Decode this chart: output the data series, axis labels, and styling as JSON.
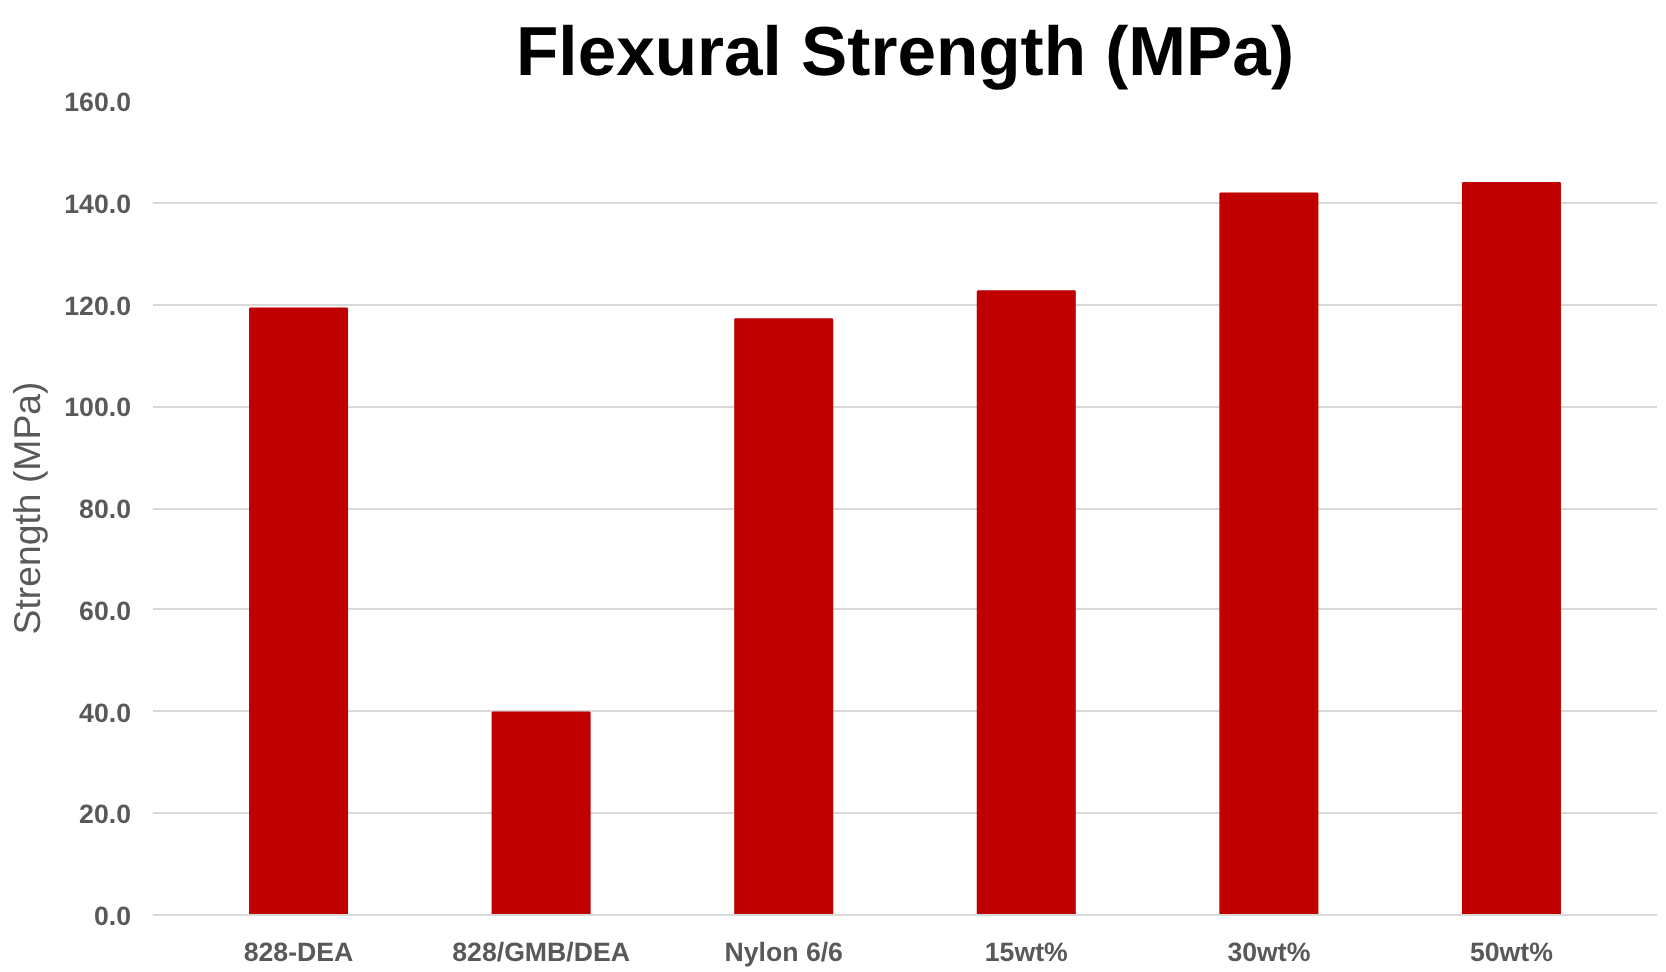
{
  "chart_data": {
    "type": "bar",
    "title": "Flexural Strength (MPa)",
    "ylabel": "Strength (MPa)",
    "categories": [
      "828-DEA",
      "828/GMB/DEA",
      "Nylon 6/6",
      "15wt%",
      "30wt%",
      "50wt%"
    ],
    "values": [
      119.2,
      39.8,
      117.1,
      122.6,
      141.8,
      143.9
    ],
    "color": "#c00000",
    "ylim": [
      0,
      160
    ],
    "yticks": [
      {
        "value": 0,
        "label": "0.0"
      },
      {
        "value": 20,
        "label": "20.0"
      },
      {
        "value": 40,
        "label": "40.0"
      },
      {
        "value": 60,
        "label": "60.0"
      },
      {
        "value": 80,
        "label": "80.0"
      },
      {
        "value": 100,
        "label": "100.0"
      },
      {
        "value": 120,
        "label": "120.0"
      },
      {
        "value": 140,
        "label": "140.0"
      },
      {
        "value": 160,
        "label": "160.0"
      }
    ],
    "grid": "y"
  }
}
